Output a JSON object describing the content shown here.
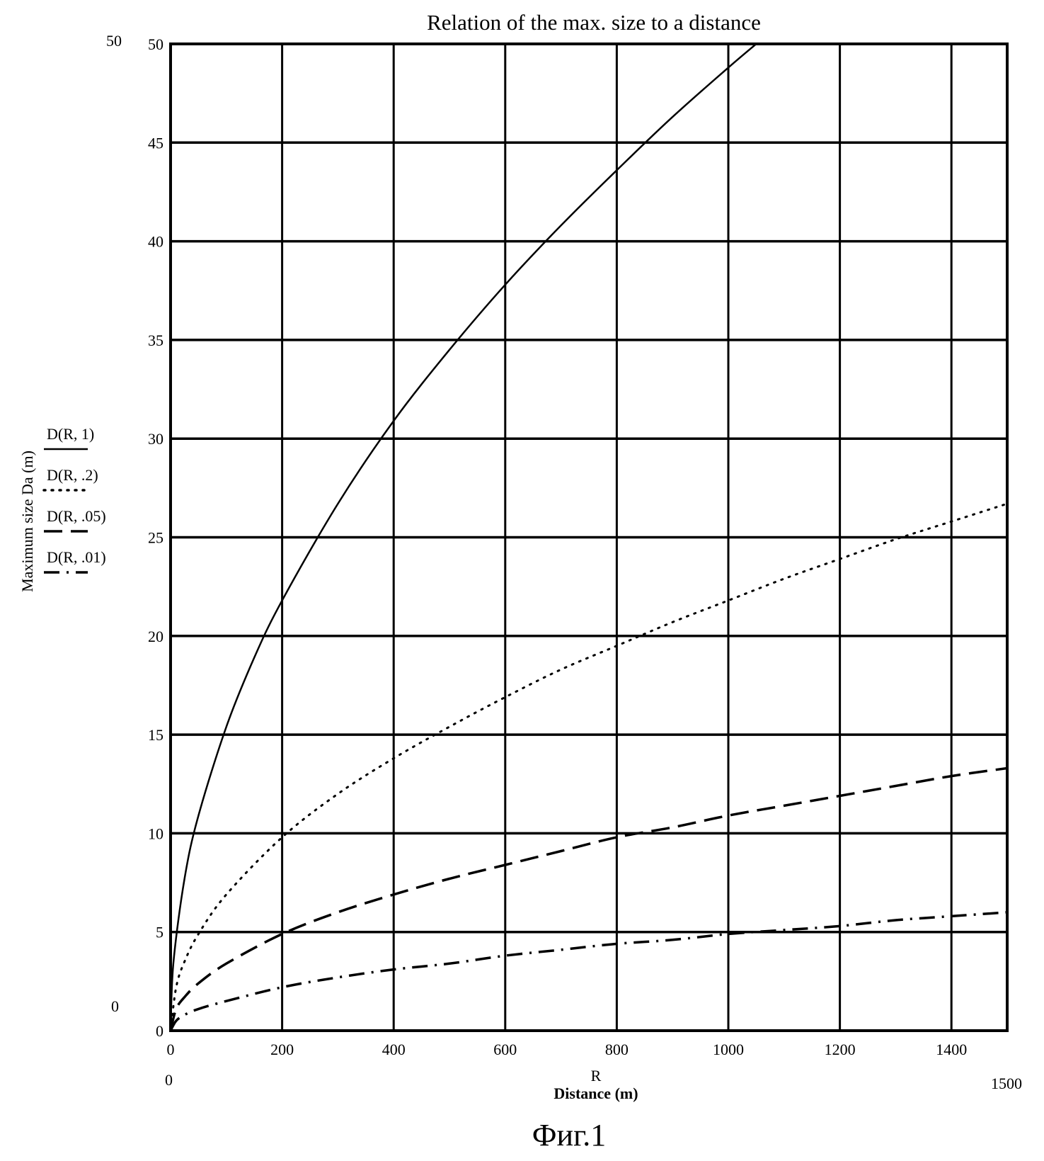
{
  "chart_data": {
    "type": "line",
    "title": "Relation of the max. size to a distance",
    "xlabel_var": "R",
    "xlabel": "Distance (m)",
    "ylabel": "Maximum size Da  (m)",
    "xlim": [
      0,
      1500
    ],
    "ylim": [
      0,
      50
    ],
    "xlim_labels": {
      "min": "0",
      "max": "1500"
    },
    "ylim_labels": {
      "min": "0",
      "max": "50"
    },
    "x_ticks": [
      0,
      200,
      400,
      600,
      800,
      1000,
      1200,
      1400
    ],
    "y_ticks": [
      0,
      5,
      10,
      15,
      20,
      25,
      30,
      35,
      40,
      45,
      50
    ],
    "x_tick_labels": [
      "0",
      "200",
      "400",
      "600",
      "800",
      "1000",
      "1200",
      "1400"
    ],
    "y_tick_labels": [
      "0",
      "5",
      "10",
      "15",
      "20",
      "25",
      "30",
      "35",
      "40",
      "45",
      "50"
    ],
    "grid": true,
    "legend_position": "left, beside y axis label",
    "series": [
      {
        "name": "D(R, 1)",
        "style": "solid",
        "x": [
          0,
          5,
          25,
          50,
          100,
          150,
          200,
          300,
          400,
          500,
          600,
          700,
          800,
          900,
          1000,
          1050
        ],
        "values": [
          0,
          3.4,
          7.7,
          10.9,
          15.4,
          18.9,
          21.8,
          26.7,
          30.9,
          34.5,
          37.8,
          40.8,
          43.6,
          46.3,
          48.8,
          50
        ]
      },
      {
        "name": "D(R, .2)",
        "style": "dotted",
        "x": [
          0,
          10,
          25,
          50,
          100,
          200,
          300,
          400,
          500,
          600,
          700,
          800,
          900,
          1000,
          1100,
          1200,
          1300,
          1400,
          1500
        ],
        "values": [
          0,
          2.2,
          3.5,
          4.9,
          6.9,
          9.8,
          12.0,
          13.8,
          15.4,
          16.9,
          18.3,
          19.5,
          20.7,
          21.8,
          22.9,
          23.9,
          24.9,
          25.8,
          26.7
        ]
      },
      {
        "name": "D(R, .05)",
        "style": "dashed",
        "x": [
          0,
          10,
          25,
          50,
          100,
          200,
          300,
          400,
          500,
          600,
          700,
          800,
          900,
          1000,
          1100,
          1200,
          1300,
          1400,
          1500
        ],
        "values": [
          0,
          1.1,
          1.7,
          2.4,
          3.4,
          4.9,
          6.0,
          6.9,
          7.7,
          8.4,
          9.1,
          9.8,
          10.3,
          10.9,
          11.4,
          11.9,
          12.4,
          12.9,
          13.3
        ]
      },
      {
        "name": "D(R, .01)",
        "style": "dash-dot",
        "x": [
          0,
          10,
          25,
          50,
          100,
          200,
          300,
          400,
          500,
          600,
          700,
          800,
          900,
          1000,
          1100,
          1200,
          1300,
          1400,
          1500
        ],
        "values": [
          0,
          0.5,
          0.8,
          1.1,
          1.5,
          2.2,
          2.7,
          3.1,
          3.4,
          3.8,
          4.1,
          4.4,
          4.6,
          4.9,
          5.1,
          5.3,
          5.6,
          5.8,
          6.0
        ]
      }
    ]
  },
  "caption": "Фиг.1"
}
